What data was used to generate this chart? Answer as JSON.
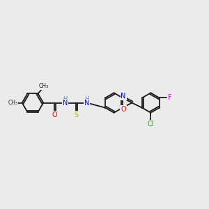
{
  "background_color": "#ebebeb",
  "bond_color": "#1a1a1a",
  "atom_colors": {
    "O": "#ff0000",
    "N": "#0000ff",
    "S": "#b8b800",
    "Cl": "#00bb00",
    "F": "#ff00ff",
    "H": "#4a9090",
    "C": "#1a1a1a"
  }
}
